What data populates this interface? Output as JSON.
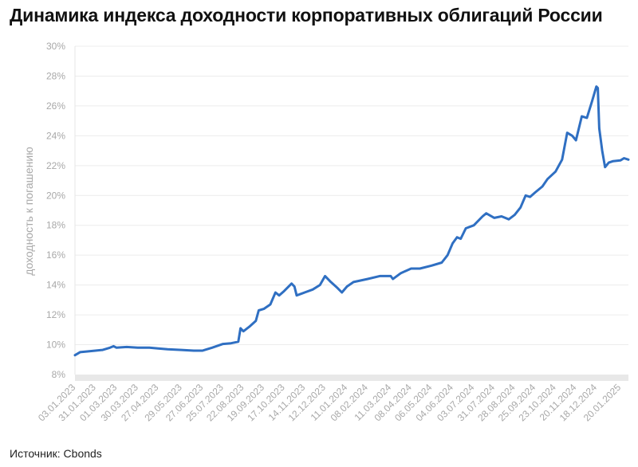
{
  "title": "Динамика индекса доходности корпоративных облигаций России",
  "source": "Источник: Cbonds",
  "chart_data": {
    "type": "line",
    "ylabel": "доходность к погашению",
    "xlabel": "",
    "ylim": [
      8,
      30
    ],
    "yticks": [
      "8%",
      "10%",
      "12%",
      "14%",
      "16%",
      "18%",
      "20%",
      "22%",
      "24%",
      "26%",
      "28%",
      "30%"
    ],
    "x_range": [
      "2023-01-03",
      "2025-01-31"
    ],
    "xticks": [
      {
        "label": "03.01.2023",
        "date": "2023-01-03"
      },
      {
        "label": "31.01.2023",
        "date": "2023-01-31"
      },
      {
        "label": "01.03.2023",
        "date": "2023-03-01"
      },
      {
        "label": "30.03.2023",
        "date": "2023-03-30"
      },
      {
        "label": "27.04.2023",
        "date": "2023-04-27"
      },
      {
        "label": "29.05.2023",
        "date": "2023-05-29"
      },
      {
        "label": "27.06.2023",
        "date": "2023-06-27"
      },
      {
        "label": "25.07.2023",
        "date": "2023-07-25"
      },
      {
        "label": "22.08.2023",
        "date": "2023-08-22"
      },
      {
        "label": "19.09.2023",
        "date": "2023-09-19"
      },
      {
        "label": "17.10.2023",
        "date": "2023-10-17"
      },
      {
        "label": "14.11.2023",
        "date": "2023-11-14"
      },
      {
        "label": "12.12.2023",
        "date": "2023-12-12"
      },
      {
        "label": "11.01.2024",
        "date": "2024-01-11"
      },
      {
        "label": "08.02.2024",
        "date": "2024-02-08"
      },
      {
        "label": "11.03.2024",
        "date": "2024-03-11"
      },
      {
        "label": "08.04.2024",
        "date": "2024-04-08"
      },
      {
        "label": "06.05.2024",
        "date": "2024-05-06"
      },
      {
        "label": "04.06.2024",
        "date": "2024-06-04"
      },
      {
        "label": "03.07.2024",
        "date": "2024-07-03"
      },
      {
        "label": "31.07.2024",
        "date": "2024-07-31"
      },
      {
        "label": "28.08.2024",
        "date": "2024-08-28"
      },
      {
        "label": "25.09.2024",
        "date": "2024-09-25"
      },
      {
        "label": "23.10.2024",
        "date": "2024-10-23"
      },
      {
        "label": "20.11.2024",
        "date": "2024-11-20"
      },
      {
        "label": "18.12.2024",
        "date": "2024-12-18"
      },
      {
        "label": "20.01.2025",
        "date": "2025-01-20"
      }
    ],
    "grid": true,
    "series": [
      {
        "color": "#2f6fc2",
        "points": [
          [
            "2023-01-03",
            9.3
          ],
          [
            "2023-01-10",
            9.5
          ],
          [
            "2023-01-20",
            9.55
          ],
          [
            "2023-01-31",
            9.6
          ],
          [
            "2023-02-10",
            9.65
          ],
          [
            "2023-02-20",
            9.8
          ],
          [
            "2023-02-25",
            9.9
          ],
          [
            "2023-03-01",
            9.8
          ],
          [
            "2023-03-15",
            9.85
          ],
          [
            "2023-03-30",
            9.8
          ],
          [
            "2023-04-15",
            9.8
          ],
          [
            "2023-04-27",
            9.75
          ],
          [
            "2023-05-10",
            9.7
          ],
          [
            "2023-05-29",
            9.65
          ],
          [
            "2023-06-15",
            9.6
          ],
          [
            "2023-06-27",
            9.6
          ],
          [
            "2023-07-10",
            9.8
          ],
          [
            "2023-07-25",
            10.05
          ],
          [
            "2023-08-05",
            10.1
          ],
          [
            "2023-08-15",
            10.2
          ],
          [
            "2023-08-18",
            11.1
          ],
          [
            "2023-08-22",
            10.9
          ],
          [
            "2023-08-30",
            11.2
          ],
          [
            "2023-09-08",
            11.6
          ],
          [
            "2023-09-12",
            12.3
          ],
          [
            "2023-09-19",
            12.4
          ],
          [
            "2023-09-28",
            12.7
          ],
          [
            "2023-10-05",
            13.5
          ],
          [
            "2023-10-10",
            13.3
          ],
          [
            "2023-10-17",
            13.6
          ],
          [
            "2023-10-27",
            14.1
          ],
          [
            "2023-10-31",
            13.9
          ],
          [
            "2023-11-03",
            13.3
          ],
          [
            "2023-11-14",
            13.5
          ],
          [
            "2023-11-25",
            13.7
          ],
          [
            "2023-12-05",
            14.0
          ],
          [
            "2023-12-12",
            14.6
          ],
          [
            "2023-12-20",
            14.2
          ],
          [
            "2023-12-29",
            13.8
          ],
          [
            "2024-01-04",
            13.5
          ],
          [
            "2024-01-11",
            13.9
          ],
          [
            "2024-01-20",
            14.2
          ],
          [
            "2024-02-08",
            14.4
          ],
          [
            "2024-02-25",
            14.6
          ],
          [
            "2024-03-11",
            14.6
          ],
          [
            "2024-03-14",
            14.4
          ],
          [
            "2024-03-25",
            14.8
          ],
          [
            "2024-04-08",
            15.1
          ],
          [
            "2024-04-20",
            15.1
          ],
          [
            "2024-05-06",
            15.3
          ],
          [
            "2024-05-20",
            15.5
          ],
          [
            "2024-05-28",
            16.0
          ],
          [
            "2024-06-04",
            16.8
          ],
          [
            "2024-06-10",
            17.2
          ],
          [
            "2024-06-15",
            17.1
          ],
          [
            "2024-06-22",
            17.8
          ],
          [
            "2024-07-03",
            18.0
          ],
          [
            "2024-07-15",
            18.6
          ],
          [
            "2024-07-20",
            18.8
          ],
          [
            "2024-07-31",
            18.5
          ],
          [
            "2024-08-10",
            18.6
          ],
          [
            "2024-08-20",
            18.4
          ],
          [
            "2024-08-28",
            18.7
          ],
          [
            "2024-09-05",
            19.2
          ],
          [
            "2024-09-12",
            20.0
          ],
          [
            "2024-09-18",
            19.9
          ],
          [
            "2024-09-25",
            20.2
          ],
          [
            "2024-10-05",
            20.6
          ],
          [
            "2024-10-12",
            21.1
          ],
          [
            "2024-10-23",
            21.6
          ],
          [
            "2024-11-01",
            22.4
          ],
          [
            "2024-11-08",
            24.2
          ],
          [
            "2024-11-15",
            24.0
          ],
          [
            "2024-11-20",
            23.7
          ],
          [
            "2024-11-28",
            25.3
          ],
          [
            "2024-12-05",
            25.2
          ],
          [
            "2024-12-12",
            26.3
          ],
          [
            "2024-12-18",
            27.3
          ],
          [
            "2024-12-20",
            27.2
          ],
          [
            "2024-12-22",
            24.5
          ],
          [
            "2024-12-26",
            23.0
          ],
          [
            "2024-12-30",
            21.9
          ],
          [
            "2025-01-04",
            22.2
          ],
          [
            "2025-01-10",
            22.3
          ],
          [
            "2025-01-20",
            22.35
          ],
          [
            "2025-01-25",
            22.5
          ],
          [
            "2025-01-31",
            22.4
          ]
        ]
      }
    ]
  }
}
